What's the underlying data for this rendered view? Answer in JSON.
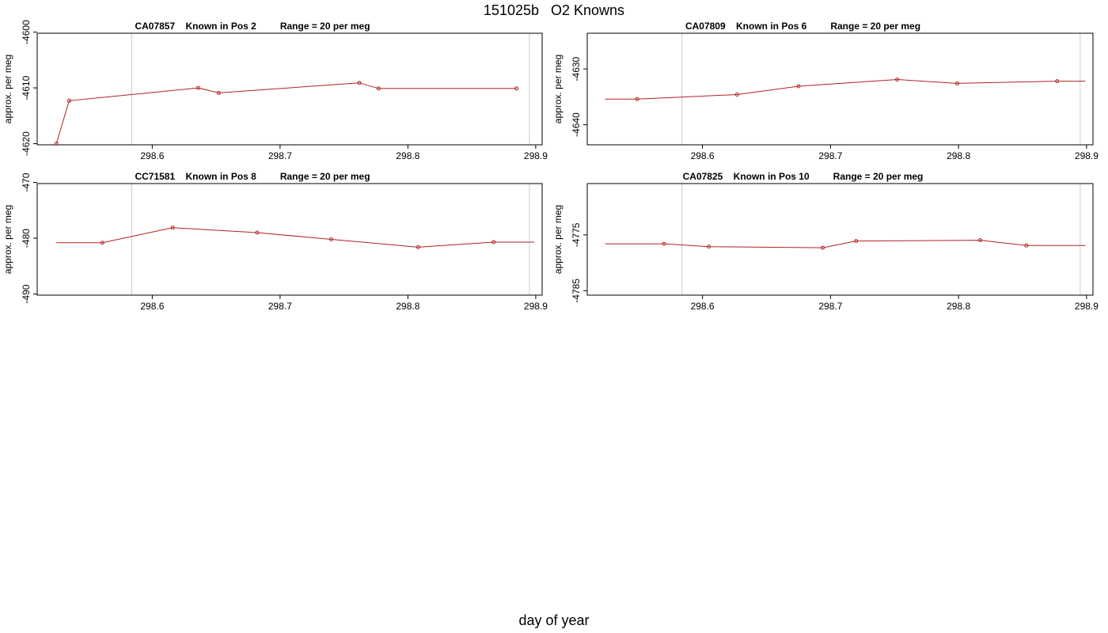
{
  "title": "151025b   O2 Knowns",
  "xlabel": "day of year",
  "chart_data": [
    {
      "type": "line",
      "title": "CA07857    Known in Pos 2         Range = 20 per meg",
      "ylabel": "approx. per meg",
      "xlim": [
        298.51,
        298.905
      ],
      "ylim": [
        -4620.2,
        -4600.2
      ],
      "xticks": [
        298.6,
        298.7,
        298.8,
        298.9
      ],
      "xtick_labels": [
        "298.6",
        "298.7",
        "298.8",
        "298.9"
      ],
      "yticks": [
        -4620,
        -4610,
        -4600
      ],
      "ytick_labels": [
        "-4620",
        "-4610",
        "-4600"
      ],
      "vlines": [
        298.584,
        298.895
      ],
      "series": [
        {
          "values": [
            [
              298.525,
              -4620
            ],
            [
              298.535,
              -4612.3
            ],
            [
              298.636,
              -4610
            ],
            [
              298.652,
              -4610.9
            ],
            [
              298.762,
              -4609.1
            ],
            [
              298.777,
              -4610.1
            ],
            [
              298.885,
              -4610.1
            ]
          ],
          "markers": [
            true,
            true,
            true,
            true,
            true,
            true,
            true
          ]
        }
      ]
    },
    {
      "type": "line",
      "title": "CA07809    Known in Pos 6         Range = 20 per meg",
      "ylabel": "approx. per meg",
      "xlim": [
        298.51,
        298.905
      ],
      "ylim": [
        -4643.6,
        -4623.6
      ],
      "xticks": [
        298.6,
        298.7,
        298.8,
        298.9
      ],
      "xtick_labels": [
        "298.6",
        "298.7",
        "298.8",
        "298.9"
      ],
      "yticks": [
        -4640,
        -4630
      ],
      "ytick_labels": [
        "-4640",
        "-4630"
      ],
      "vlines": [
        298.584,
        298.895
      ],
      "series": [
        {
          "values": [
            [
              298.524,
              -4635.4
            ],
            [
              298.549,
              -4635.4
            ],
            [
              298.627,
              -4634.6
            ],
            [
              298.675,
              -4633.1
            ],
            [
              298.752,
              -4631.9
            ],
            [
              298.799,
              -4632.6
            ],
            [
              298.877,
              -4632.2
            ],
            [
              298.899,
              -4632.2
            ]
          ],
          "markers": [
            false,
            true,
            true,
            true,
            true,
            true,
            true,
            false
          ]
        }
      ]
    },
    {
      "type": "line",
      "title": "CC71581    Known in Pos 8         Range = 20 per meg",
      "ylabel": "approx. per meg",
      "xlim": [
        298.51,
        298.905
      ],
      "ylim": [
        -490.2,
        -470.2
      ],
      "xticks": [
        298.6,
        298.7,
        298.8,
        298.9
      ],
      "xtick_labels": [
        "298.6",
        "298.7",
        "298.8",
        "298.9"
      ],
      "yticks": [
        -490,
        -480,
        -470
      ],
      "ytick_labels": [
        "-490",
        "-480",
        "-470"
      ],
      "vlines": [
        298.584,
        298.895
      ],
      "series": [
        {
          "values": [
            [
              298.525,
              -480.8
            ],
            [
              298.561,
              -480.8
            ],
            [
              298.616,
              -478.1
            ],
            [
              298.682,
              -479.0
            ],
            [
              298.74,
              -480.2
            ],
            [
              298.808,
              -481.6
            ],
            [
              298.867,
              -480.7
            ],
            [
              298.899,
              -480.7
            ]
          ],
          "markers": [
            false,
            true,
            true,
            true,
            true,
            true,
            true,
            false
          ]
        }
      ]
    },
    {
      "type": "line",
      "title": "CA07825    Known in Pos 10         Range = 20 per meg",
      "ylabel": "approx. per meg",
      "xlim": [
        298.51,
        298.905
      ],
      "ylim": [
        -4785.8,
        -4765.8
      ],
      "xticks": [
        298.6,
        298.7,
        298.8,
        298.9
      ],
      "xtick_labels": [
        "298.6",
        "298.7",
        "298.8",
        "298.9"
      ],
      "yticks": [
        -4785,
        -4775
      ],
      "ytick_labels": [
        "-4785",
        "-4775"
      ],
      "vlines": [
        298.584,
        298.895
      ],
      "series": [
        {
          "values": [
            [
              298.524,
              -4776.6
            ],
            [
              298.57,
              -4776.6
            ],
            [
              298.605,
              -4777.1
            ],
            [
              298.694,
              -4777.3
            ],
            [
              298.72,
              -4776.1
            ],
            [
              298.817,
              -4775.95
            ],
            [
              298.853,
              -4776.9
            ],
            [
              298.899,
              -4776.9
            ]
          ],
          "markers": [
            false,
            true,
            true,
            true,
            true,
            true,
            true,
            false
          ]
        }
      ]
    }
  ]
}
